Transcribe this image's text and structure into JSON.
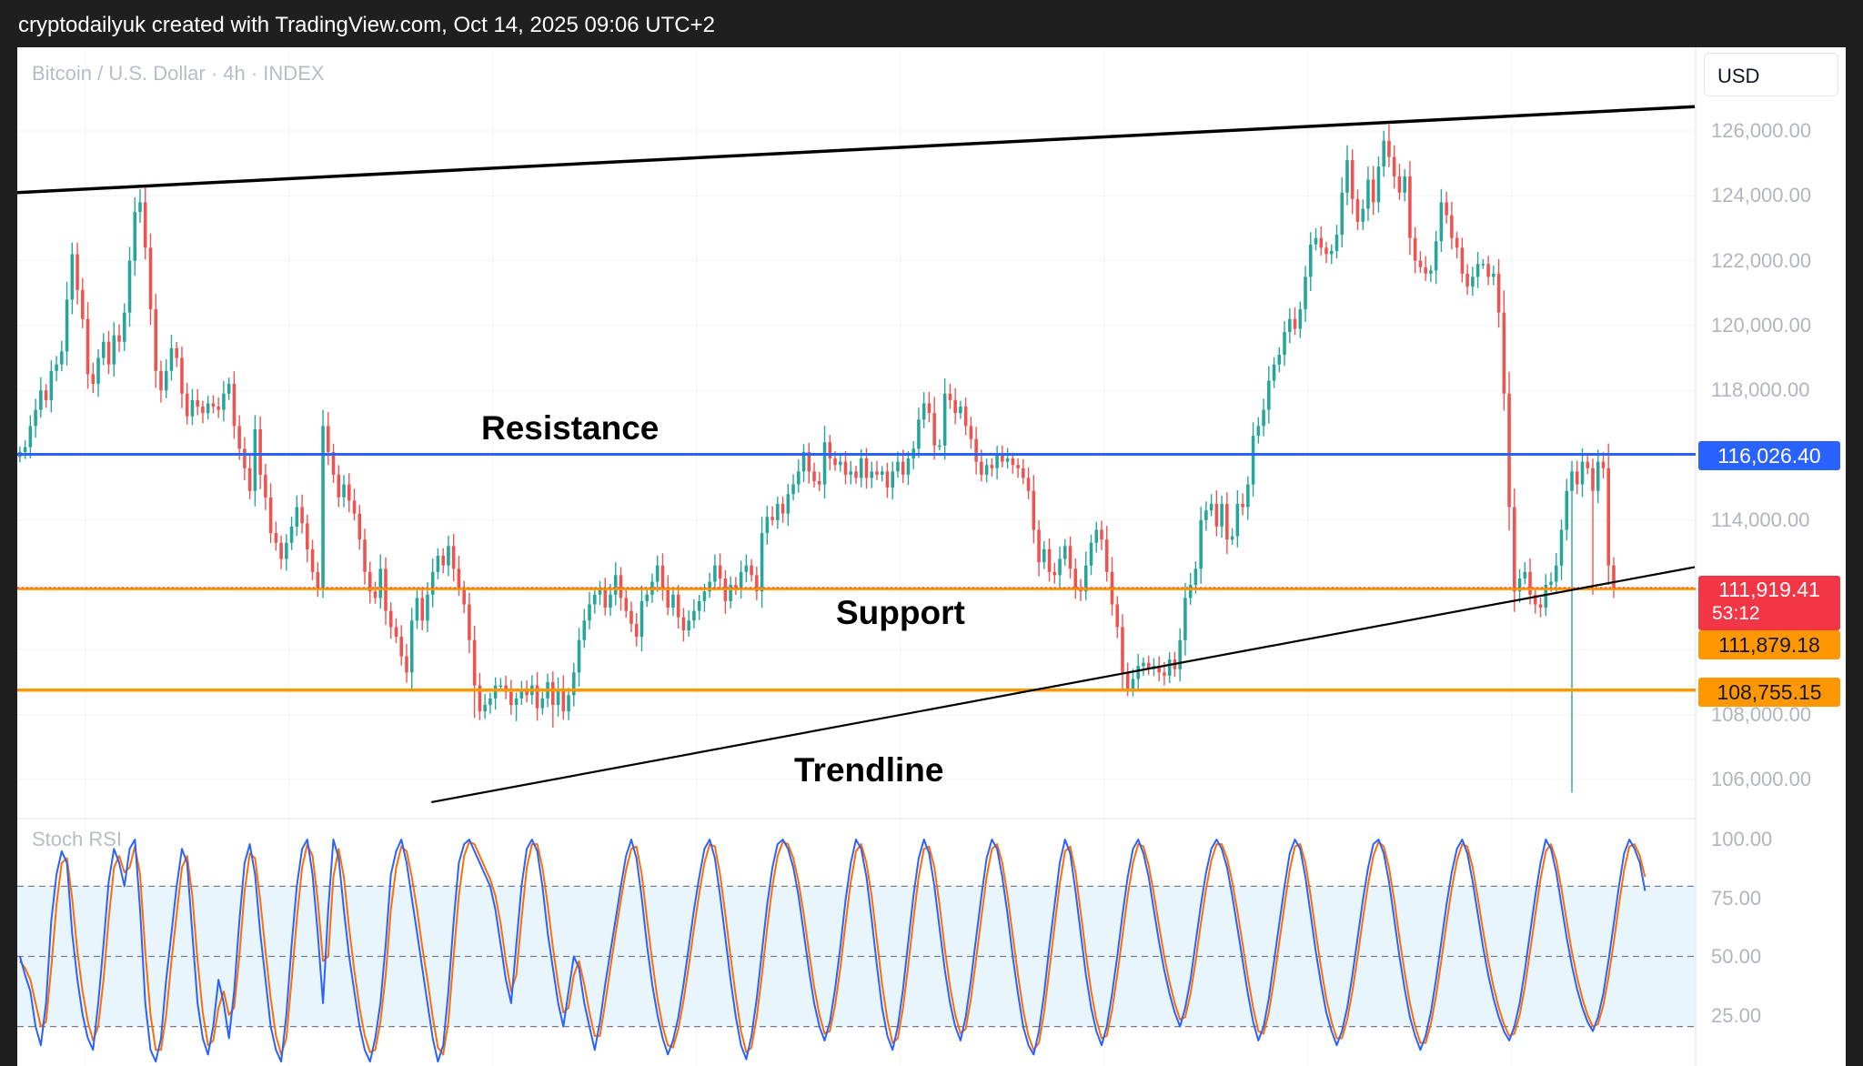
{
  "header": {
    "caption": "cryptodailyuk created with TradingView.com, Oct 14, 2025 09:06 UTC+2"
  },
  "symbol": "Bitcoin / U.S. Dollar · 4h · INDEX",
  "currency": "USD",
  "annotations": {
    "resistance": "Resistance",
    "support": "Support",
    "trendline": "Trendline"
  },
  "price_axis": {
    "ticks": [
      "126,000.00",
      "124,000.00",
      "122,000.00",
      "120,000.00",
      "118,000.00",
      "114,000.00",
      "108,000.00",
      "106,000.00"
    ]
  },
  "stoch_axis": {
    "ticks": [
      "100.00",
      "75.00",
      "50.00",
      "25.00"
    ]
  },
  "price_labels": {
    "resistance": "116,026.40",
    "last": "111,919.41",
    "countdown": "53:12",
    "support": "111,879.18",
    "lower_support": "108,755.15"
  },
  "colors": {
    "up": "#26a69a",
    "down": "#ef5350",
    "resistance_line": "#2962ff",
    "support_line": "#ff9800",
    "last_price_label": "#f23645",
    "stoch_k": "#2962ff",
    "stoch_d": "#ff6d00",
    "stoch_band": "#e3f2fd"
  },
  "chart_data": [
    {
      "type": "candlestick",
      "title": "Bitcoin / U.S. Dollar · 4h · INDEX",
      "ylim": [
        105000,
        127500
      ],
      "grid": true,
      "levels": [
        {
          "name": "Resistance",
          "value": 116026.4
        },
        {
          "name": "Support",
          "value": 111879.18
        },
        {
          "name": "",
          "value": 108755.15
        },
        {
          "name": "",
          "value": 111919.41
        }
      ],
      "trendlines": [
        {
          "name": "",
          "from": {
            "bar": 0,
            "price": 124100
          },
          "to": {
            "bar": 320,
            "price": 126750
          }
        },
        {
          "name": "Trendline",
          "from": {
            "bar": 79,
            "price": 105300
          },
          "to": {
            "bar": 320,
            "price": 112550
          }
        }
      ],
      "close": [
        116100,
        116250,
        116900,
        117400,
        118000,
        117700,
        118600,
        118800,
        119200,
        120800,
        122200,
        121100,
        120200,
        118500,
        118200,
        119000,
        119500,
        118800,
        119700,
        119500,
        120400,
        122000,
        123500,
        123800,
        122400,
        120500,
        118600,
        118000,
        118600,
        119300,
        119000,
        117900,
        117200,
        117700,
        117500,
        117300,
        117600,
        117500,
        117400,
        117900,
        118200,
        116900,
        116200,
        115600,
        114900,
        116800,
        115400,
        114700,
        113600,
        113300,
        112800,
        113300,
        113800,
        114400,
        113900,
        113100,
        112400,
        111900,
        116900,
        116100,
        115400,
        114700,
        115100,
        114600,
        114200,
        113400,
        112400,
        111800,
        111600,
        112500,
        111200,
        110700,
        110400,
        109800,
        109300,
        110900,
        111600,
        110900,
        111700,
        112400,
        112900,
        112600,
        113200,
        112500,
        111900,
        111400,
        110300,
        108900,
        108100,
        108300,
        108500,
        108900,
        108900,
        108700,
        108300,
        108500,
        108800,
        108600,
        108900,
        108200,
        108500,
        109000,
        108300,
        108800,
        108100,
        108600,
        109300,
        110300,
        110900,
        111400,
        111700,
        111900,
        111300,
        111700,
        112300,
        111600,
        111200,
        110800,
        110400,
        111500,
        111700,
        112100,
        112600,
        111900,
        111300,
        111700,
        111000,
        110600,
        110900,
        111200,
        111500,
        111800,
        112100,
        112600,
        112200,
        111500,
        112000,
        111900,
        112400,
        112600,
        112300,
        111800,
        113600,
        114100,
        114000,
        114500,
        114200,
        114800,
        115100,
        115500,
        116100,
        115500,
        115200,
        115100,
        116400,
        115900,
        115700,
        115800,
        115400,
        115500,
        115300,
        115900,
        115300,
        115500,
        115400,
        115500,
        115000,
        115500,
        115800,
        115400,
        115900,
        116200,
        117100,
        117600,
        117300,
        116300,
        116300,
        117900,
        117700,
        117300,
        117500,
        116900,
        116500,
        115800,
        115400,
        115700,
        115600,
        116000,
        115800,
        115900,
        115700,
        115600,
        115300,
        114900,
        113700,
        112700,
        113100,
        112400,
        112300,
        112800,
        113200,
        112500,
        111900,
        111800,
        112600,
        113300,
        113700,
        113400,
        112400,
        111400,
        110700,
        109300,
        108800,
        109100,
        109500,
        109600,
        109400,
        109500,
        109300,
        109200,
        109700,
        109400,
        110300,
        111600,
        112000,
        112500,
        114000,
        114300,
        114500,
        113800,
        114500,
        113400,
        113500,
        114500,
        114400,
        115100,
        116600,
        116900,
        117400,
        118300,
        118800,
        119100,
        119800,
        120200,
        119900,
        120500,
        121500,
        122500,
        122700,
        122400,
        122200,
        122300,
        122800,
        124100,
        125100,
        123900,
        123200,
        123600,
        124500,
        123800,
        124900,
        125700,
        125200,
        124600,
        124100,
        124600,
        122700,
        122000,
        121800,
        121600,
        121700,
        122600,
        123800,
        123400,
        122700,
        122400,
        121600,
        121200,
        121500,
        121900,
        121900,
        121500,
        121600,
        120400,
        117900,
        114400,
        111800,
        112200,
        112400,
        111700,
        111400,
        111300,
        112000,
        112100,
        112600,
        113700,
        114900,
        115500,
        115100,
        115800,
        115600,
        114900,
        115800,
        115600,
        112600,
        111900
      ],
      "special_wicks": [
        {
          "bar": 2,
          "low": 115900
        },
        {
          "bar": 23,
          "high": 124200
        },
        {
          "bar": 58,
          "high": 117400,
          "low": 111600
        },
        {
          "bar": 87,
          "low": 107900
        },
        {
          "bar": 95,
          "low": 107800
        },
        {
          "bar": 102,
          "low": 107600
        },
        {
          "bar": 175,
          "high": 117800
        },
        {
          "bar": 262,
          "high": 126200
        },
        {
          "bar": 297,
          "low": 105600
        },
        {
          "bar": 301,
          "low": 111700
        }
      ]
    },
    {
      "type": "line",
      "title": "Stoch RSI",
      "ylim": [
        0,
        100
      ],
      "bands": [
        80,
        50,
        20
      ],
      "series": [
        {
          "name": "",
          "values": [
            50,
            42,
            35,
            20,
            12,
            30,
            65,
            85,
            95,
            90,
            60,
            40,
            25,
            15,
            10,
            30,
            55,
            82,
            96,
            90,
            80,
            96,
            100,
            70,
            30,
            10,
            5,
            15,
            40,
            60,
            80,
            96,
            90,
            60,
            30,
            15,
            8,
            20,
            40,
            30,
            15,
            35,
            65,
            90,
            98,
            85,
            60,
            40,
            20,
            10,
            5,
            25,
            55,
            80,
            96,
            100,
            85,
            60,
            30,
            70,
            100,
            92,
            70,
            50,
            35,
            20,
            10,
            5,
            15,
            30,
            55,
            85,
            95,
            100,
            90,
            75,
            60,
            45,
            30,
            15,
            5,
            12,
            35,
            65,
            90,
            98,
            100,
            95,
            90,
            85,
            80,
            70,
            55,
            40,
            30,
            55,
            80,
            96,
            100,
            95,
            80,
            60,
            45,
            30,
            20,
            35,
            50,
            45,
            30,
            20,
            10,
            22,
            38,
            52,
            66,
            80,
            93,
            100,
            92,
            75,
            55,
            38,
            25,
            15,
            8,
            14,
            24,
            38,
            54,
            70,
            84,
            96,
            100,
            92,
            76,
            58,
            40,
            24,
            12,
            6,
            16,
            32,
            52,
            72,
            88,
            98,
            100,
            96,
            88,
            76,
            60,
            44,
            30,
            20,
            14,
            22,
            36,
            54,
            74,
            90,
            100,
            96,
            84,
            66,
            46,
            28,
            16,
            10,
            20,
            36,
            56,
            76,
            92,
            100,
            94,
            80,
            62,
            44,
            30,
            20,
            14,
            24,
            40,
            58,
            76,
            92,
            100,
            96,
            84,
            68,
            50,
            34,
            20,
            12,
            8,
            18,
            34,
            54,
            72,
            90,
            100,
            94,
            78,
            60,
            42,
            28,
            18,
            12,
            20,
            34,
            50,
            68,
            84,
            96,
            100,
            94,
            84,
            70,
            56,
            44,
            34,
            26,
            20,
            28,
            40,
            56,
            72,
            86,
            96,
            100,
            96,
            88,
            76,
            62,
            48,
            34,
            22,
            14,
            20,
            32,
            48,
            64,
            80,
            94,
            100,
            96,
            84,
            68,
            52,
            38,
            26,
            18,
            12,
            18,
            28,
            42,
            58,
            74,
            88,
            98,
            100,
            94,
            82,
            66,
            50,
            36,
            24,
            16,
            10,
            16,
            26,
            40,
            56,
            72,
            86,
            96,
            100,
            94,
            82,
            68,
            54,
            42,
            32,
            24,
            18,
            14,
            20,
            30,
            44,
            60,
            76,
            90,
            100,
            96,
            86,
            72,
            58,
            46,
            36,
            28,
            22,
            18,
            24,
            34,
            48,
            64,
            80,
            94,
            100,
            96,
            90,
            78
          ]
        },
        {
          "name": "",
          "values": [
            48,
            45,
            40,
            30,
            20,
            22,
            45,
            72,
            90,
            92,
            75,
            52,
            35,
            22,
            14,
            20,
            40,
            66,
            88,
            93,
            86,
            88,
            97,
            85,
            52,
            25,
            10,
            10,
            25,
            48,
            68,
            88,
            93,
            76,
            48,
            26,
            12,
            14,
            28,
            35,
            25,
            28,
            50,
            78,
            94,
            92,
            74,
            52,
            32,
            16,
            8,
            15,
            40,
            66,
            88,
            98,
            93,
            74,
            48,
            50,
            84,
            96,
            84,
            62,
            44,
            28,
            16,
            9,
            10,
            22,
            42,
            70,
            88,
            97,
            95,
            84,
            70,
            54,
            40,
            24,
            11,
            8,
            22,
            50,
            76,
            93,
            99,
            98,
            93,
            88,
            83,
            76,
            64,
            48,
            35,
            42,
            66,
            88,
            98,
            98,
            88,
            72,
            54,
            38,
            26,
            28,
            42,
            48,
            38,
            26,
            16,
            16,
            30,
            45,
            60,
            74,
            87,
            96,
            97,
            85,
            66,
            48,
            32,
            20,
            12,
            11,
            19,
            31,
            46,
            62,
            77,
            90,
            98,
            97,
            85,
            68,
            50,
            33,
            18,
            9,
            11,
            24,
            42,
            62,
            80,
            93,
            99,
            98,
            92,
            82,
            68,
            52,
            37,
            25,
            17,
            18,
            29,
            45,
            64,
            82,
            95,
            98,
            90,
            76,
            57,
            38,
            23,
            13,
            15,
            28,
            46,
            66,
            84,
            96,
            97,
            88,
            72,
            53,
            37,
            25,
            17,
            19,
            32,
            49,
            67,
            84,
            96,
            98,
            90,
            76,
            59,
            42,
            27,
            16,
            10,
            13,
            26,
            44,
            63,
            81,
            95,
            97,
            86,
            69,
            51,
            35,
            23,
            15,
            16,
            27,
            42,
            59,
            76,
            90,
            98,
            97,
            89,
            77,
            63,
            50,
            39,
            30,
            23,
            24,
            34,
            48,
            64,
            79,
            91,
            98,
            98,
            92,
            82,
            69,
            55,
            41,
            28,
            18,
            17,
            26,
            40,
            56,
            72,
            87,
            97,
            98,
            90,
            76,
            60,
            45,
            32,
            22,
            15,
            15,
            23,
            35,
            50,
            66,
            81,
            93,
            99,
            97,
            88,
            74,
            58,
            43,
            30,
            20,
            13,
            13,
            21,
            33,
            48,
            64,
            79,
            91,
            98,
            97,
            88,
            75,
            61,
            48,
            37,
            28,
            21,
            16,
            17,
            25,
            37,
            52,
            68,
            83,
            95,
            98,
            91,
            79,
            65,
            52,
            41,
            32,
            25,
            20,
            21,
            29,
            41,
            56,
            72,
            87,
            97,
            98,
            93,
            84
          ]
        }
      ]
    }
  ]
}
